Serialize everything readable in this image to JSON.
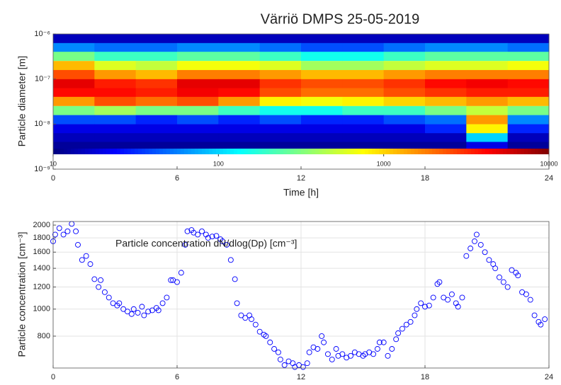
{
  "chart_data": [
    {
      "type": "heatmap",
      "title": "Värriö DMPS 25-05-2019",
      "xlabel": "Time [h]",
      "ylabel": "Particle diameter [m]",
      "x": [
        1,
        3,
        5,
        7,
        9,
        11,
        13,
        15,
        17,
        19,
        21,
        23
      ],
      "y": [
        7.9e-07,
        5e-07,
        3.2e-07,
        2e-07,
        1.26e-07,
        7.9e-08,
        5e-08,
        3.2e-08,
        2e-08,
        1.26e-08,
        7.9e-09,
        5e-09,
        3.2e-09
      ],
      "z": [
        [
          15,
          15,
          15,
          15,
          15,
          15,
          15,
          15,
          15,
          15,
          15,
          15
        ],
        [
          60,
          50,
          50,
          60,
          60,
          50,
          40,
          40,
          50,
          60,
          60,
          50
        ],
        [
          300,
          200,
          200,
          250,
          250,
          200,
          150,
          150,
          200,
          250,
          250,
          250
        ],
        [
          1200,
          600,
          500,
          700,
          700,
          600,
          400,
          400,
          500,
          600,
          600,
          700
        ],
        [
          2500,
          1500,
          1200,
          1800,
          1800,
          1500,
          1200,
          1200,
          1500,
          1800,
          1800,
          1800
        ],
        [
          5000,
          3500,
          3000,
          5000,
          5000,
          3000,
          2500,
          2500,
          3000,
          4000,
          4500,
          4000
        ],
        [
          4000,
          4000,
          3500,
          4500,
          4000,
          2500,
          2000,
          2000,
          2500,
          3000,
          3500,
          3500
        ],
        [
          1500,
          2500,
          2000,
          2500,
          1500,
          800,
          700,
          800,
          1000,
          1200,
          1500,
          1200
        ],
        [
          300,
          400,
          300,
          300,
          200,
          150,
          150,
          200,
          200,
          300,
          500,
          300
        ],
        [
          40,
          40,
          30,
          40,
          30,
          40,
          30,
          30,
          40,
          50,
          1500,
          60
        ],
        [
          20,
          20,
          20,
          20,
          20,
          20,
          20,
          20,
          20,
          30,
          800,
          30
        ],
        [
          15,
          15,
          15,
          15,
          15,
          15,
          15,
          15,
          15,
          15,
          100,
          15
        ],
        [
          12,
          12,
          12,
          12,
          12,
          12,
          12,
          12,
          12,
          12,
          20,
          12
        ]
      ],
      "xlim": [
        0,
        24
      ],
      "xticks": [
        0,
        6,
        12,
        18,
        24
      ],
      "ylim": [
        1e-09,
        1e-06
      ],
      "ylog": true,
      "yticks": [
        {
          "value": 1e-06,
          "label": "10⁻⁶"
        },
        {
          "value": 1e-07,
          "label": "10⁻⁷"
        },
        {
          "value": 1e-08,
          "label": "10⁻⁸"
        },
        {
          "value": 1e-09,
          "label": "10⁻⁹"
        }
      ],
      "clim": [
        10,
        10000
      ],
      "clog": true,
      "cticks": [
        10,
        100,
        1000,
        10000
      ],
      "colormap": "jet"
    },
    {
      "type": "scatter",
      "ylabel": "Particle concentration [cm⁻³]",
      "annotation": "Particle concentration dN/dlog(Dp) [cm⁻³]",
      "color": "#0000ff",
      "grid": true,
      "xlim": [
        0,
        24
      ],
      "xticks": [
        0,
        6,
        12,
        18,
        24
      ],
      "ylim": [
        615,
        2060
      ],
      "ylog": true,
      "yticks": [
        800,
        1000,
        1200,
        1400,
        1600,
        1800,
        2000
      ],
      "x": [
        0.0,
        0.1,
        0.3,
        0.5,
        0.7,
        0.9,
        1.1,
        1.2,
        1.4,
        1.6,
        1.8,
        2.0,
        2.2,
        2.3,
        2.5,
        2.7,
        2.9,
        3.1,
        3.2,
        3.4,
        3.6,
        3.8,
        3.9,
        4.1,
        4.3,
        4.4,
        4.6,
        4.8,
        5.0,
        5.1,
        5.3,
        5.5,
        5.7,
        5.8,
        6.0,
        6.2,
        6.4,
        6.5,
        6.7,
        6.8,
        7.0,
        7.2,
        7.4,
        7.5,
        7.7,
        7.9,
        8.1,
        8.2,
        8.4,
        8.6,
        8.8,
        8.9,
        9.1,
        9.3,
        9.5,
        9.6,
        9.8,
        10.0,
        10.2,
        10.3,
        10.5,
        10.7,
        10.9,
        11.0,
        11.2,
        11.4,
        11.6,
        11.7,
        11.9,
        12.1,
        12.3,
        12.4,
        12.6,
        12.8,
        13.0,
        13.1,
        13.3,
        13.5,
        13.7,
        13.8,
        14.0,
        14.2,
        14.4,
        14.6,
        14.8,
        15.0,
        15.1,
        15.3,
        15.5,
        15.7,
        15.8,
        16.0,
        16.2,
        16.4,
        16.6,
        16.7,
        16.9,
        17.1,
        17.3,
        17.5,
        17.6,
        17.8,
        18.0,
        18.2,
        18.4,
        18.6,
        18.7,
        18.9,
        19.1,
        19.3,
        19.5,
        19.6,
        19.8,
        20.0,
        20.2,
        20.4,
        20.5,
        20.7,
        20.9,
        21.1,
        21.3,
        21.4,
        21.6,
        21.8,
        22.0,
        22.2,
        22.4,
        22.5,
        22.7,
        22.9,
        23.1,
        23.3,
        23.5,
        23.6,
        23.8
      ],
      "values": [
        1750,
        1850,
        1950,
        1850,
        1900,
        2020,
        1900,
        1700,
        1500,
        1550,
        1450,
        1280,
        1200,
        1270,
        1150,
        1100,
        1050,
        1030,
        1050,
        1000,
        980,
        960,
        1000,
        970,
        1020,
        950,
        980,
        990,
        1010,
        990,
        1050,
        1100,
        1270,
        1270,
        1250,
        1350,
        1700,
        1900,
        1920,
        1880,
        1850,
        1900,
        1850,
        1800,
        1820,
        1830,
        1780,
        1750,
        1700,
        1500,
        1280,
        1050,
        950,
        930,
        950,
        920,
        880,
        830,
        810,
        800,
        760,
        720,
        700,
        660,
        630,
        650,
        640,
        620,
        630,
        620,
        640,
        700,
        730,
        720,
        800,
        760,
        690,
        660,
        720,
        680,
        690,
        670,
        680,
        700,
        690,
        680,
        690,
        700,
        690,
        720,
        760,
        760,
        680,
        720,
        780,
        820,
        850,
        880,
        900,
        950,
        1000,
        1050,
        1020,
        1030,
        1100,
        1230,
        1250,
        1100,
        1080,
        1130,
        1050,
        1020,
        1100,
        1550,
        1650,
        1750,
        1850,
        1700,
        1600,
        1500,
        1450,
        1400,
        1300,
        1250,
        1200,
        1380,
        1350,
        1320,
        1150,
        1130,
        1080,
        950,
        900,
        880,
        920
      ]
    }
  ]
}
